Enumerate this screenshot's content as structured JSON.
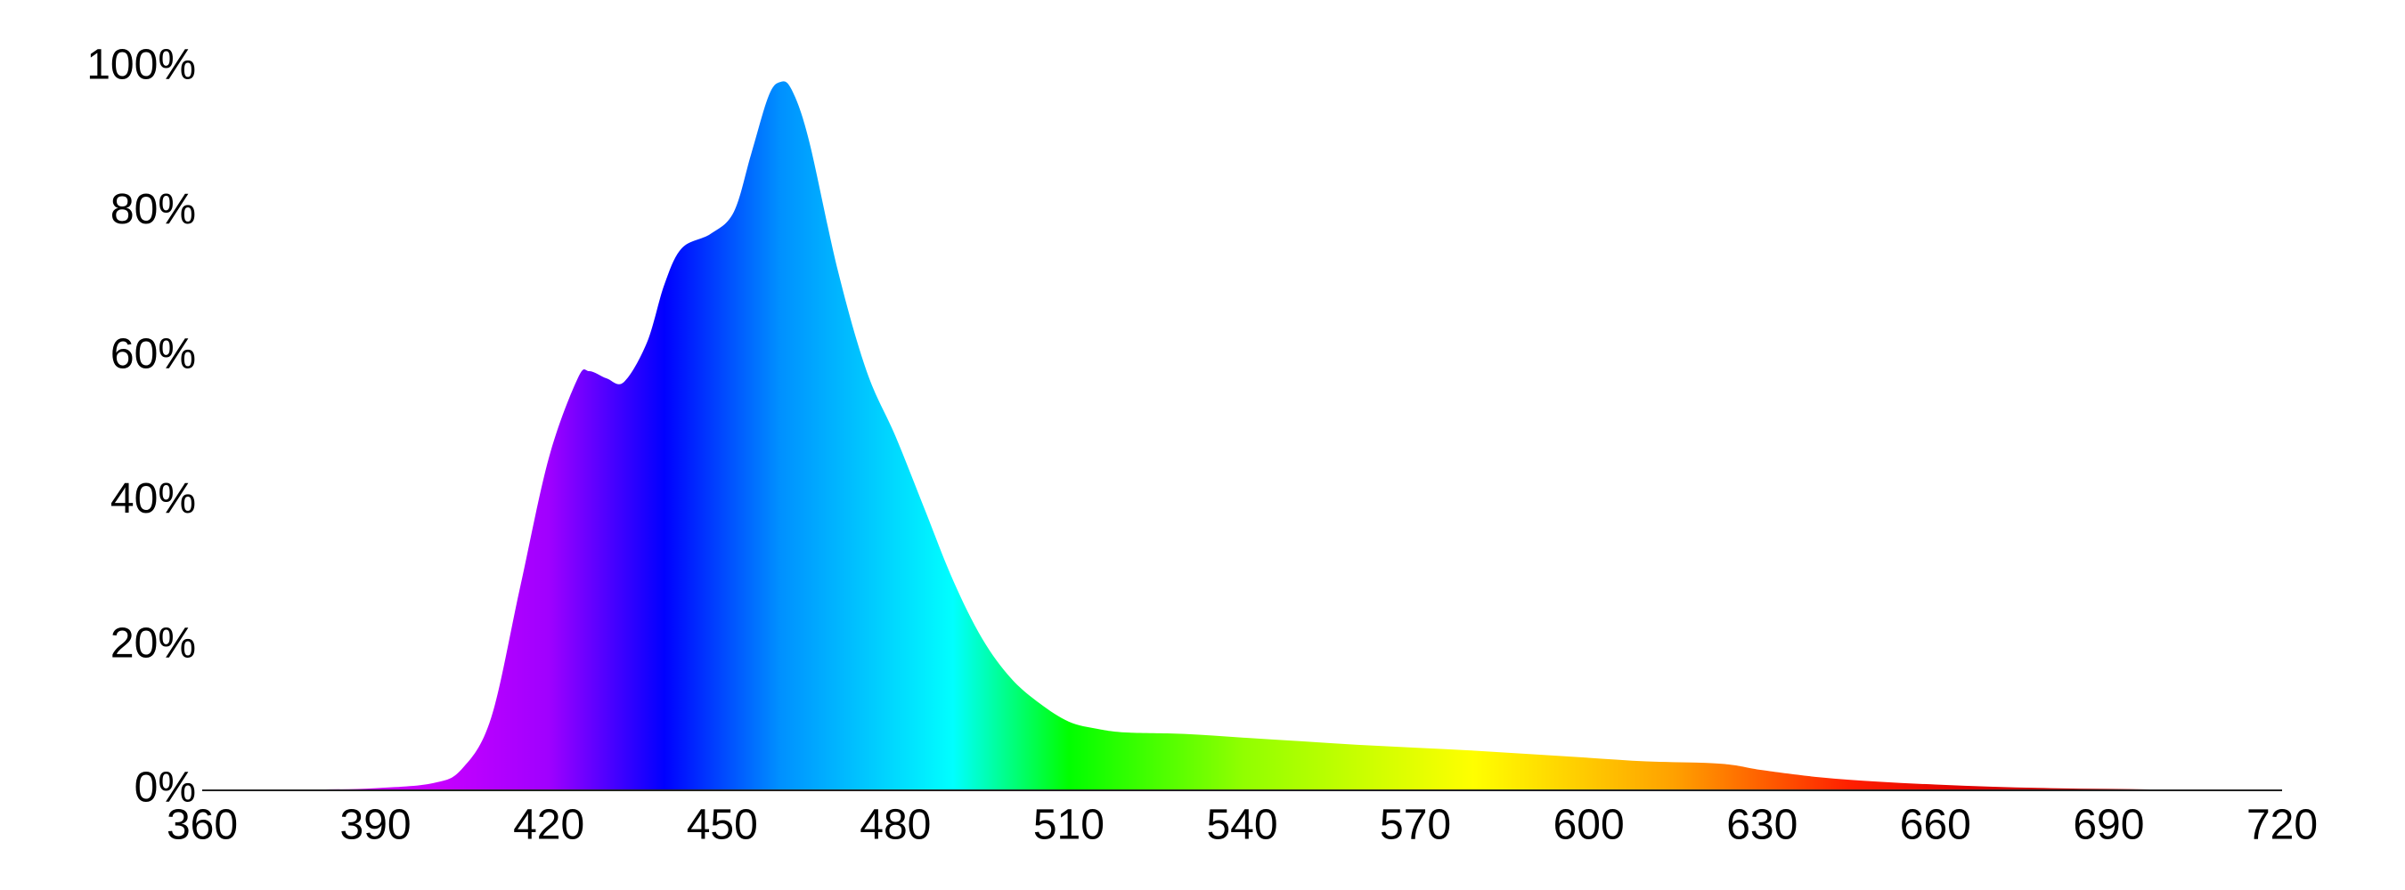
{
  "chart_data": {
    "type": "area",
    "x": [
      360,
      370,
      380,
      390,
      400,
      405,
      410,
      415,
      420,
      425,
      427,
      430,
      433,
      437,
      440,
      443,
      448,
      452,
      455,
      458,
      460,
      462,
      465,
      470,
      475,
      480,
      485,
      490,
      495,
      500,
      505,
      510,
      515,
      520,
      530,
      540,
      550,
      560,
      570,
      580,
      590,
      600,
      610,
      620,
      625,
      630,
      640,
      650,
      660,
      670,
      680,
      690,
      700,
      710,
      720
    ],
    "values": [
      0,
      0,
      0.1,
      0.3,
      1,
      3,
      10,
      28,
      46,
      57,
      58,
      57,
      56.5,
      62,
      70,
      75,
      77,
      80,
      88,
      96,
      98,
      97,
      90,
      72,
      58,
      49,
      39,
      29,
      21,
      15.5,
      12,
      9.5,
      8.5,
      8,
      7.8,
      7.3,
      6.8,
      6.3,
      5.9,
      5.5,
      5.0,
      4.5,
      4.0,
      3.8,
      3.5,
      2.8,
      1.8,
      1.2,
      0.8,
      0.5,
      0.3,
      0.2,
      0.1,
      0.05,
      0
    ],
    "xlim": [
      360,
      720
    ],
    "ylim": [
      0,
      100
    ],
    "xticks": [
      360,
      390,
      420,
      450,
      480,
      510,
      540,
      570,
      600,
      630,
      660,
      690,
      720
    ],
    "yticks": [
      {
        "value": 0,
        "label": "0%"
      },
      {
        "value": 20,
        "label": "20%"
      },
      {
        "value": 40,
        "label": "40%"
      },
      {
        "value": 60,
        "label": "60%"
      },
      {
        "value": 80,
        "label": "80%"
      },
      {
        "value": 100,
        "label": "100%"
      }
    ],
    "fill_gradient": [
      {
        "x": 400,
        "color": "#c800ff"
      },
      {
        "x": 420,
        "color": "#a000ff"
      },
      {
        "x": 440,
        "color": "#0000ff"
      },
      {
        "x": 460,
        "color": "#0090ff"
      },
      {
        "x": 490,
        "color": "#00ffff"
      },
      {
        "x": 510,
        "color": "#00ff00"
      },
      {
        "x": 540,
        "color": "#90ff00"
      },
      {
        "x": 580,
        "color": "#ffff00"
      },
      {
        "x": 615,
        "color": "#ffa000"
      },
      {
        "x": 645,
        "color": "#ff2000"
      },
      {
        "x": 665,
        "color": "#e00000"
      },
      {
        "x": 720,
        "color": "#800000"
      }
    ],
    "axis_color": "#222222"
  }
}
